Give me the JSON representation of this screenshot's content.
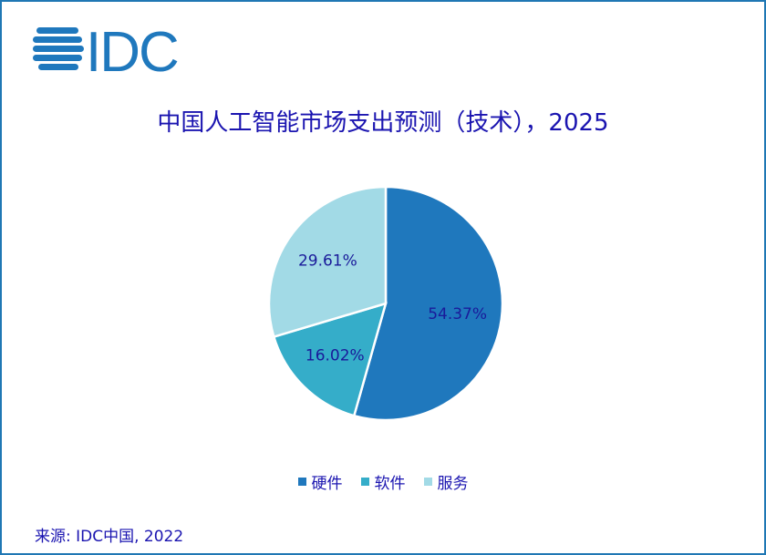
{
  "logo_text": "IDC",
  "chart_data": {
    "type": "pie",
    "title": "中国人工智能市场支出预测（技术），2025",
    "categories": [
      "硬件",
      "软件",
      "服务"
    ],
    "values": [
      54.37,
      16.02,
      29.61
    ],
    "labels": [
      "54.37%",
      "16.02%",
      "29.61%"
    ],
    "colors": [
      "#1f78bd",
      "#35adc9",
      "#a2dae6"
    ],
    "legend_position": "bottom"
  },
  "source": "来源: IDC中国, 2022"
}
